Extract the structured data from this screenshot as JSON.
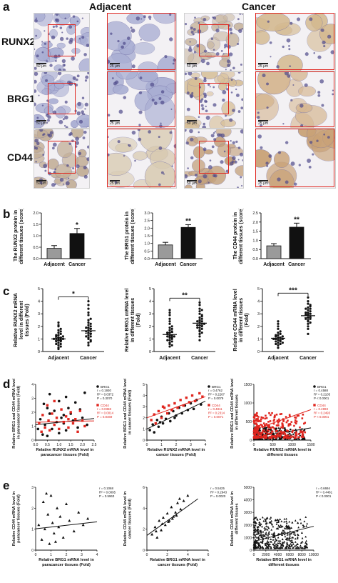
{
  "figure": {
    "panel_labels": [
      "a",
      "b",
      "c",
      "d",
      "e"
    ],
    "column_headers": [
      "Adjacent",
      "Cancer"
    ],
    "row_labels": [
      "RUNX2",
      "BRG1",
      "CD44"
    ],
    "scale_bar_labels": [
      "50 μm",
      "25 μm"
    ],
    "colors": {
      "accent_red": "#e0261f",
      "bar_gray": "#9a9a9a",
      "bar_black": "#111111",
      "tissue_blue": "#a9aed3",
      "tissue_brown": "#c8a273"
    }
  },
  "chart_data": [
    {
      "id": "b1",
      "type": "bar",
      "ylabel": "The RUNX2 protein in different tissues (score)",
      "categories": [
        "Adjacent",
        "Cancer"
      ],
      "values": [
        0.45,
        1.1
      ],
      "errors": [
        0.12,
        0.22
      ],
      "ylim": [
        0,
        2.0
      ],
      "yticks": [
        "0.0",
        "0.5",
        "1.0",
        "1.5",
        "2.0"
      ],
      "significance": "*"
    },
    {
      "id": "b2",
      "type": "bar",
      "ylabel": "The BRG1 protein in different tissues (score)",
      "categories": [
        "Adjacent",
        "Cancer"
      ],
      "values": [
        0.9,
        2.05
      ],
      "errors": [
        0.17,
        0.18
      ],
      "ylim": [
        0,
        3.0
      ],
      "yticks": [
        "0.0",
        "0.5",
        "1.0",
        "1.5",
        "2.0",
        "2.5",
        "3.0"
      ],
      "significance": "**"
    },
    {
      "id": "b3",
      "type": "bar",
      "ylabel": "The CD44 protein in different tissues (score)",
      "categories": [
        "Adjacent",
        "Cancer"
      ],
      "values": [
        0.7,
        1.72
      ],
      "errors": [
        0.12,
        0.22
      ],
      "ylim": [
        0,
        2.5
      ],
      "yticks": [
        "0.0",
        "0.5",
        "1.0",
        "1.5",
        "2.0",
        "2.5"
      ],
      "significance": "**"
    },
    {
      "id": "c1",
      "type": "scatter",
      "ylabel": "Relative RUNX2 mRNA level in different tissues (Fold)",
      "categories": [
        "Adjacent",
        "Cancer"
      ],
      "ylim": [
        0,
        5
      ],
      "yticks": [
        "0",
        "1",
        "2",
        "3",
        "4",
        "5"
      ],
      "means": [
        1.0,
        1.65
      ],
      "sems": [
        0.12,
        0.2
      ],
      "significance": "*",
      "groups": [
        [
          0.3,
          0.5,
          0.6,
          0.7,
          0.8,
          0.8,
          0.9,
          0.9,
          1.0,
          1.0,
          1.0,
          1.1,
          1.1,
          1.2,
          1.2,
          1.3,
          1.4,
          1.5,
          1.6,
          1.7,
          1.8,
          2.0,
          2.1,
          2.3,
          0.4,
          0.6,
          1.3,
          0.2
        ],
        [
          0.5,
          0.7,
          0.8,
          1.0,
          1.1,
          1.2,
          1.3,
          1.4,
          1.5,
          1.6,
          1.6,
          1.7,
          1.8,
          1.9,
          2.0,
          2.1,
          2.3,
          2.5,
          2.6,
          2.9,
          3.1,
          3.4,
          3.7,
          4.0,
          1.2,
          2.2,
          0.9,
          1.9
        ]
      ]
    },
    {
      "id": "c2",
      "type": "scatter",
      "ylabel": "Relative BRG1 mRNA level in different tissues (Fold)",
      "categories": [
        "Adjacent",
        "Cancer"
      ],
      "ylim": [
        0,
        5
      ],
      "yticks": [
        "0",
        "1",
        "2",
        "3",
        "4",
        "5"
      ],
      "means": [
        1.35,
        2.25
      ],
      "sems": [
        0.15,
        0.18
      ],
      "significance": "**",
      "groups": [
        [
          0.4,
          0.6,
          0.7,
          0.8,
          0.9,
          1.0,
          1.1,
          1.1,
          1.2,
          1.3,
          1.3,
          1.4,
          1.5,
          1.6,
          1.7,
          1.8,
          1.9,
          2.0,
          2.2,
          2.4,
          2.6,
          2.9,
          3.1,
          3.3,
          0.9,
          1.5,
          1.2,
          0.5
        ],
        [
          0.9,
          1.2,
          1.4,
          1.6,
          1.7,
          1.8,
          1.9,
          2.0,
          2.1,
          2.2,
          2.3,
          2.4,
          2.5,
          2.6,
          2.7,
          2.8,
          3.0,
          3.2,
          3.4,
          3.7,
          3.9,
          1.5,
          2.1,
          2.9,
          2.4,
          1.9,
          3.3,
          2.2
        ]
      ]
    },
    {
      "id": "c3",
      "type": "scatter",
      "ylabel": "Relative CD44 mRNA level in different tissues (Fold)",
      "categories": [
        "Adjacent",
        "Cancer"
      ],
      "ylim": [
        0,
        5
      ],
      "yticks": [
        "0",
        "1",
        "2",
        "3",
        "4",
        "5"
      ],
      "means": [
        1.05,
        2.85
      ],
      "sems": [
        0.1,
        0.15
      ],
      "significance": "***",
      "groups": [
        [
          0.3,
          0.5,
          0.6,
          0.7,
          0.8,
          0.8,
          0.9,
          0.9,
          1.0,
          1.0,
          1.1,
          1.1,
          1.2,
          1.2,
          1.3,
          1.4,
          1.5,
          1.6,
          1.8,
          2.0,
          2.2,
          2.4,
          0.6,
          1.0,
          1.3,
          0.7
        ],
        [
          1.4,
          1.8,
          2.0,
          2.2,
          2.4,
          2.5,
          2.6,
          2.7,
          2.8,
          2.9,
          3.0,
          3.1,
          3.2,
          3.3,
          3.4,
          3.5,
          3.6,
          3.8,
          4.0,
          4.3,
          2.3,
          2.9,
          3.1,
          2.6,
          3.4,
          3.7
        ]
      ]
    },
    {
      "id": "d1",
      "type": "scatter",
      "xlabel": "Relative RUNX2 mRNA level in paracancer tissues (Fold)",
      "ylabel": "Relative BRG1 and CD44 mRNA levels in paracancer tissues (Fold)",
      "xlim": [
        0,
        2.5
      ],
      "ylim": [
        0,
        4
      ],
      "xticks": [
        "0.0",
        "0.5",
        "1.0",
        "1.5",
        "2.0",
        "2.5"
      ],
      "yticks": [
        "0",
        "1",
        "2",
        "3",
        "4"
      ],
      "series": [
        {
          "name": "BRG1",
          "color": "#111111",
          "stats": [
            "r = 0.1930",
            "R² = 0.0372",
            "P = 0.3070"
          ],
          "x": [
            0.1,
            0.2,
            0.3,
            0.35,
            0.4,
            0.5,
            0.6,
            0.6,
            0.7,
            0.8,
            0.9,
            1.0,
            1.0,
            1.1,
            1.2,
            1.3,
            1.3,
            1.4,
            1.5,
            1.6,
            1.7,
            1.8,
            1.9,
            2.0,
            2.1,
            2.2,
            0.5,
            1.2
          ],
          "y": [
            0.8,
            1.5,
            0.4,
            2.6,
            1.1,
            0.3,
            1.9,
            3.3,
            0.8,
            2.1,
            1.3,
            0.5,
            2.8,
            1.6,
            1.2,
            3.1,
            0.7,
            2.3,
            1.9,
            1.4,
            2.7,
            0.9,
            2.2,
            1.6,
            3.4,
            1.1,
            2.3,
            1.8
          ],
          "fit": [
            [
              0,
              1.1
            ],
            [
              2.5,
              1.55
            ]
          ]
        },
        {
          "name": "CD44",
          "color": "#e0261f",
          "stats": [
            "r = 0.0368",
            "R² = 0.0014",
            "P = 0.8469"
          ],
          "x": [
            0.15,
            0.25,
            0.3,
            0.4,
            0.5,
            0.55,
            0.6,
            0.7,
            0.8,
            0.9,
            1.0,
            1.1,
            1.2,
            1.3,
            1.4,
            1.5,
            1.6,
            1.7,
            1.8,
            1.9,
            2.0,
            2.1,
            0.8,
            1.4
          ],
          "y": [
            1.2,
            0.6,
            1.8,
            0.9,
            2.5,
            1.4,
            0.7,
            1.9,
            1.1,
            1.6,
            0.8,
            2.2,
            1.3,
            1.7,
            0.9,
            2.0,
            1.2,
            1.5,
            0.6,
            2.1,
            1.4,
            1.0,
            2.8,
            1.5
          ],
          "fit": [
            [
              0,
              1.28
            ],
            [
              2.5,
              1.38
            ]
          ]
        }
      ]
    },
    {
      "id": "d2",
      "type": "scatter",
      "xlabel": "Relative RUNX2 mRNA level in cancer tissues (Fold)",
      "ylabel": "Relative BRG1 and CD44 mRNA levels in cancer tissues (Fold)",
      "xlim": [
        0,
        4
      ],
      "ylim": [
        0,
        5
      ],
      "xticks": [
        "0",
        "1",
        "2",
        "3",
        "4"
      ],
      "yticks": [
        "0",
        "1",
        "2",
        "3",
        "4",
        "5"
      ],
      "series": [
        {
          "name": "BRG1",
          "color": "#111111",
          "stats": [
            "r = 0.4762",
            "R² = 0.2267",
            "P = 0.0079"
          ],
          "x": [
            0.2,
            0.4,
            0.5,
            0.7,
            0.8,
            1.0,
            1.1,
            1.3,
            1.5,
            1.6,
            1.8,
            2.0,
            2.2,
            2.4,
            2.6,
            2.8,
            3.0,
            3.2,
            3.4,
            3.7,
            0.9,
            1.9
          ],
          "y": [
            0.9,
            1.4,
            0.7,
            1.8,
            1.2,
            2.1,
            1.5,
            1.9,
            2.4,
            1.7,
            2.6,
            2.2,
            2.9,
            2.4,
            3.1,
            2.7,
            3.3,
            2.8,
            3.6,
            3.2,
            1.6,
            2.0
          ],
          "fit": [
            [
              0,
              1.0
            ],
            [
              4,
              3.5
            ]
          ]
        },
        {
          "name": "CD44",
          "color": "#e0261f",
          "stats": [
            "r = 0.4811",
            "R² = 0.2314",
            "P = 0.0071"
          ],
          "x": [
            0.3,
            0.5,
            0.6,
            0.8,
            1.0,
            1.2,
            1.4,
            1.5,
            1.7,
            1.9,
            2.1,
            2.3,
            2.5,
            2.7,
            2.9,
            3.1,
            3.3,
            3.6,
            3.8,
            1.1
          ],
          "y": [
            1.8,
            2.3,
            1.5,
            2.6,
            2.0,
            2.9,
            2.4,
            3.1,
            2.7,
            3.3,
            2.9,
            3.6,
            3.1,
            3.8,
            3.4,
            4.0,
            3.5,
            4.2,
            3.9,
            3.0
          ],
          "fit": [
            [
              0,
              2.0
            ],
            [
              4,
              3.9
            ]
          ]
        }
      ]
    },
    {
      "id": "d3",
      "type": "scatter",
      "xlabel": "Relative RUNX2 mRNA level in different tissues",
      "ylabel": "Relative BRG1 and CD44 mRNA levels in different tissues",
      "xlim": [
        0,
        1500
      ],
      "ylim": [
        0,
        1500
      ],
      "xticks": [
        "0",
        "500",
        "1000",
        "1500"
      ],
      "yticks": [
        "0",
        "500",
        "1000",
        "1500"
      ],
      "series": [
        {
          "name": "BRG1",
          "color": "#111111",
          "stats": [
            "r = 0.4588",
            "R² = 0.2105",
            "P < 0.0001"
          ],
          "fit": [
            [
              0,
              80
            ],
            [
              1500,
              330
            ]
          ]
        },
        {
          "name": "CD44",
          "color": "#e0261f",
          "stats": [
            "r = 0.4993",
            "R² = 0.2493",
            "P < 0.0001"
          ],
          "fit": [
            [
              0,
              280
            ],
            [
              1500,
              820
            ]
          ]
        }
      ]
    },
    {
      "id": "e1",
      "type": "scatter",
      "xlabel": "Relative BRG1 mRNA level in paracancer tissues (Fold)",
      "ylabel": "Relative CD44 mRNA level in paracancer tissues (Fold)",
      "xlim": [
        0,
        4
      ],
      "ylim": [
        0,
        3
      ],
      "xticks": [
        "0",
        "1",
        "2",
        "3",
        "4"
      ],
      "yticks": [
        "0",
        "1",
        "2",
        "3"
      ],
      "stats": [
        "r = 0.1068",
        "R² = 0.0095",
        "P = 0.5963"
      ],
      "x": [
        0.2,
        0.4,
        0.5,
        0.6,
        0.8,
        0.9,
        1.0,
        1.1,
        1.2,
        1.4,
        1.5,
        1.6,
        1.8,
        2.0,
        2.2,
        2.5,
        2.8,
        3.1,
        3.4,
        0.7,
        1.3
      ],
      "y": [
        1.2,
        0.5,
        2.3,
        1.0,
        1.7,
        0.3,
        2.6,
        1.3,
        0.8,
        2.0,
        1.1,
        1.6,
        0.6,
        2.2,
        1.4,
        0.9,
        1.8,
        1.2,
        1.5,
        2.7,
        0.4
      ],
      "fit": [
        [
          0,
          1.02
        ],
        [
          4,
          1.35
        ]
      ]
    },
    {
      "id": "e2",
      "type": "scatter",
      "xlabel": "Relative BRG1 mRNA level in cancer tissues (Fold)",
      "ylabel": "Relative CD44 mRNA level in cancer tissues (Fold)",
      "xlim": [
        0,
        6
      ],
      "ylim": [
        0,
        6
      ],
      "xticks": [
        "0",
        "2",
        "4",
        "6"
      ],
      "yticks": [
        "0",
        "2",
        "4",
        "6"
      ],
      "stats": [
        "r = 0.5425",
        "R² = 0.2943",
        "P = 0.0020"
      ],
      "x": [
        0.5,
        0.8,
        1.0,
        1.2,
        1.4,
        1.6,
        1.8,
        2.0,
        2.2,
        2.4,
        2.6,
        2.8,
        3.0,
        3.3,
        3.6,
        4.0,
        1.5,
        2.5,
        3.2,
        0.9,
        2.1,
        2.9
      ],
      "y": [
        1.5,
        2.2,
        1.2,
        2.8,
        1.9,
        3.1,
        2.4,
        3.5,
        2.8,
        4.1,
        3.2,
        3.6,
        4.5,
        3.9,
        4.7,
        5.2,
        2.5,
        3.0,
        4.9,
        1.8,
        2.7,
        3.3
      ],
      "fit": [
        [
          0,
          1.4
        ],
        [
          5,
          4.9
        ]
      ]
    },
    {
      "id": "e3",
      "type": "scatter",
      "xlabel": "Relative BRG1 mRNA level in different tissues",
      "ylabel": "Relative CD44 mRNA level in different tissues",
      "xlim": [
        0,
        10000
      ],
      "ylim": [
        0,
        5000
      ],
      "xticks": [
        "0",
        "2000",
        "4000",
        "6000",
        "8000",
        "10000"
      ],
      "yticks": [
        "0",
        "1000",
        "2000",
        "3000",
        "4000",
        "5000"
      ],
      "stats": [
        "r = 0.6694",
        "R² = 0.4481",
        "P < 0.0001"
      ],
      "fit": [
        [
          0,
          700
        ],
        [
          10000,
          1900
        ]
      ]
    }
  ]
}
